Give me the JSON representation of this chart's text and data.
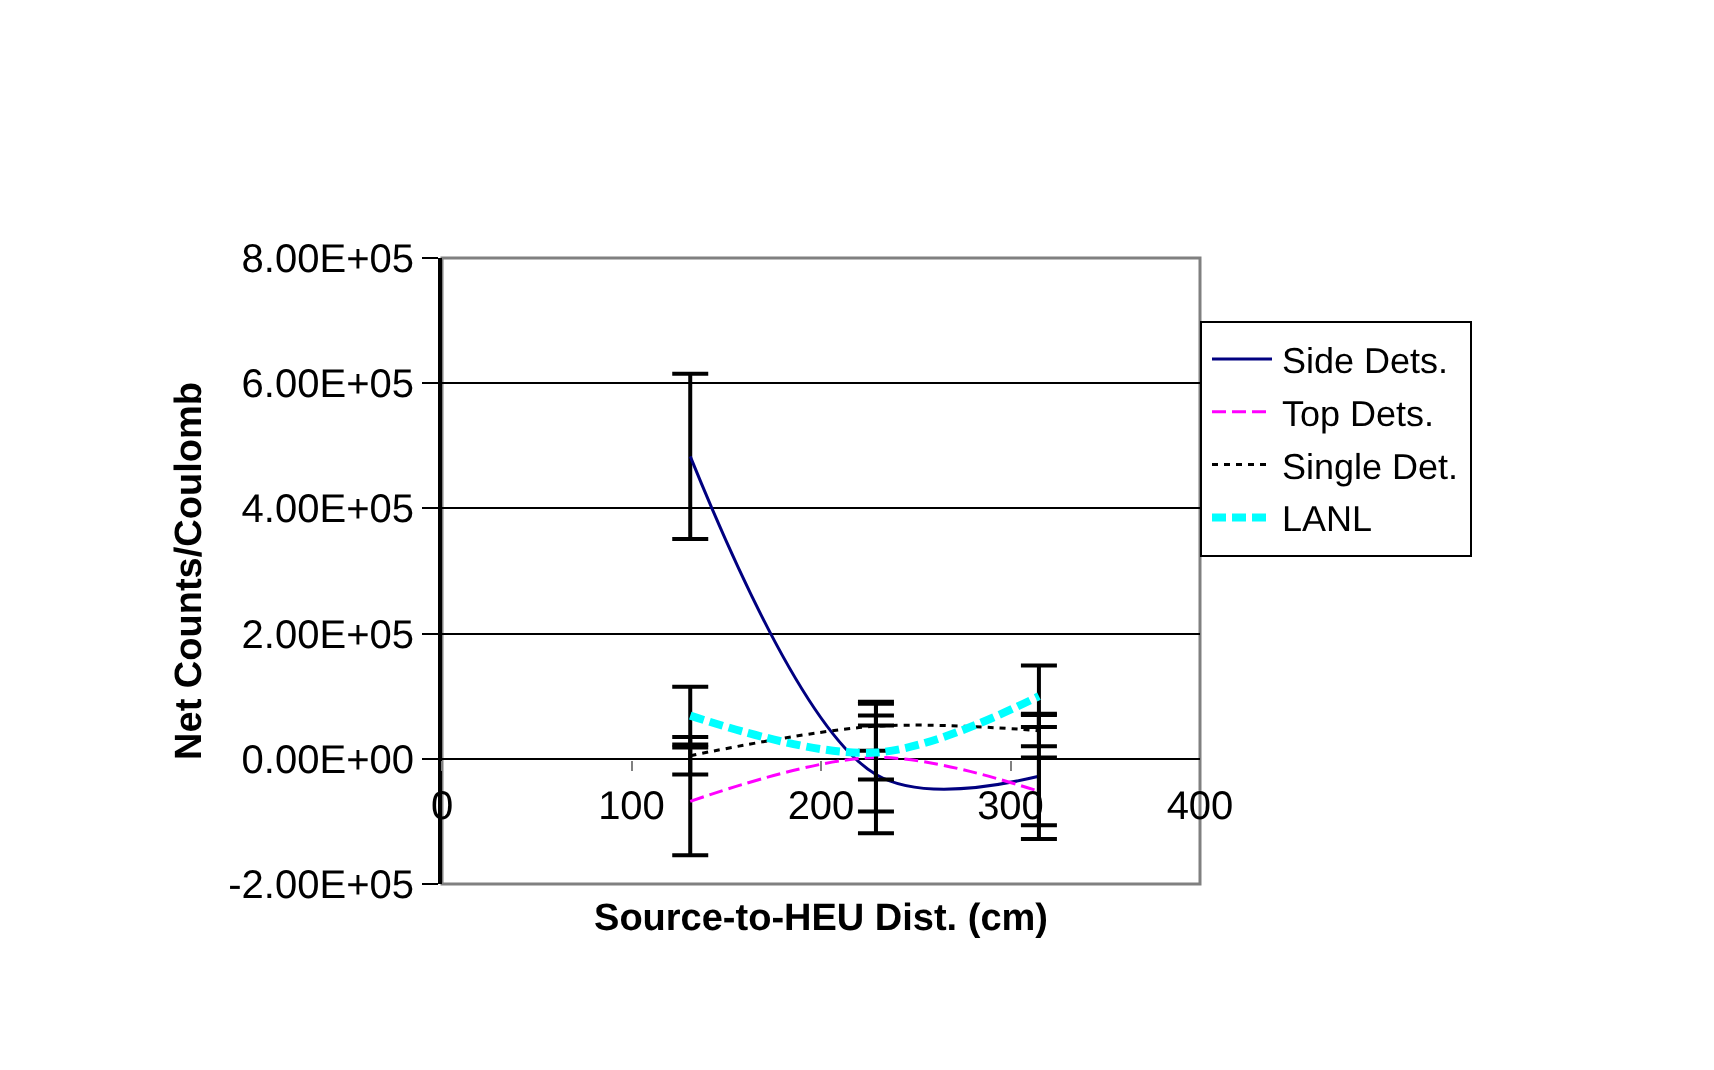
{
  "chart_data": {
    "type": "line",
    "xlabel": "Source-to-HEU Dist. (cm)",
    "ylabel": "Net Counts/Coulomb",
    "x": [
      131,
      229,
      315
    ],
    "series": [
      {
        "name": "Side Dets.",
        "color": "#000080",
        "line_style": "solid",
        "values": [
          483000,
          -25000,
          -28000
        ],
        "errors": [
          132000,
          94000,
          100000
        ]
      },
      {
        "name": "Top Dets.",
        "color": "#ff00ff",
        "line_style": "dashed",
        "values": [
          -68000,
          2000,
          -52000
        ],
        "errors": [
          86000,
          86000,
          54000
        ]
      },
      {
        "name": "Single Det.",
        "color": "#000000",
        "line_style": "dotted",
        "values": [
          5000,
          52000,
          45000
        ],
        "errors": [
          30000,
          39000,
          25000
        ]
      },
      {
        "name": "LANL",
        "color": "#00ffff",
        "line_style": "dashed",
        "values": [
          69000,
          10000,
          100000
        ],
        "errors": [
          46000,
          43000,
          49000
        ]
      }
    ],
    "xlim": [
      0,
      400
    ],
    "xticks": [
      0,
      100,
      200,
      300,
      400
    ],
    "ylim": [
      -200000,
      800000
    ],
    "yticks": [
      {
        "value": -200000,
        "label": "-2.00E+05"
      },
      {
        "value": 0,
        "label": "0.00E+00"
      },
      {
        "value": 200000,
        "label": "2.00E+05"
      },
      {
        "value": 400000,
        "label": "4.00E+05"
      },
      {
        "value": 600000,
        "label": "6.00E+05"
      },
      {
        "value": 800000,
        "label": "8.00E+05"
      }
    ],
    "grid": "y",
    "legend": "right"
  }
}
